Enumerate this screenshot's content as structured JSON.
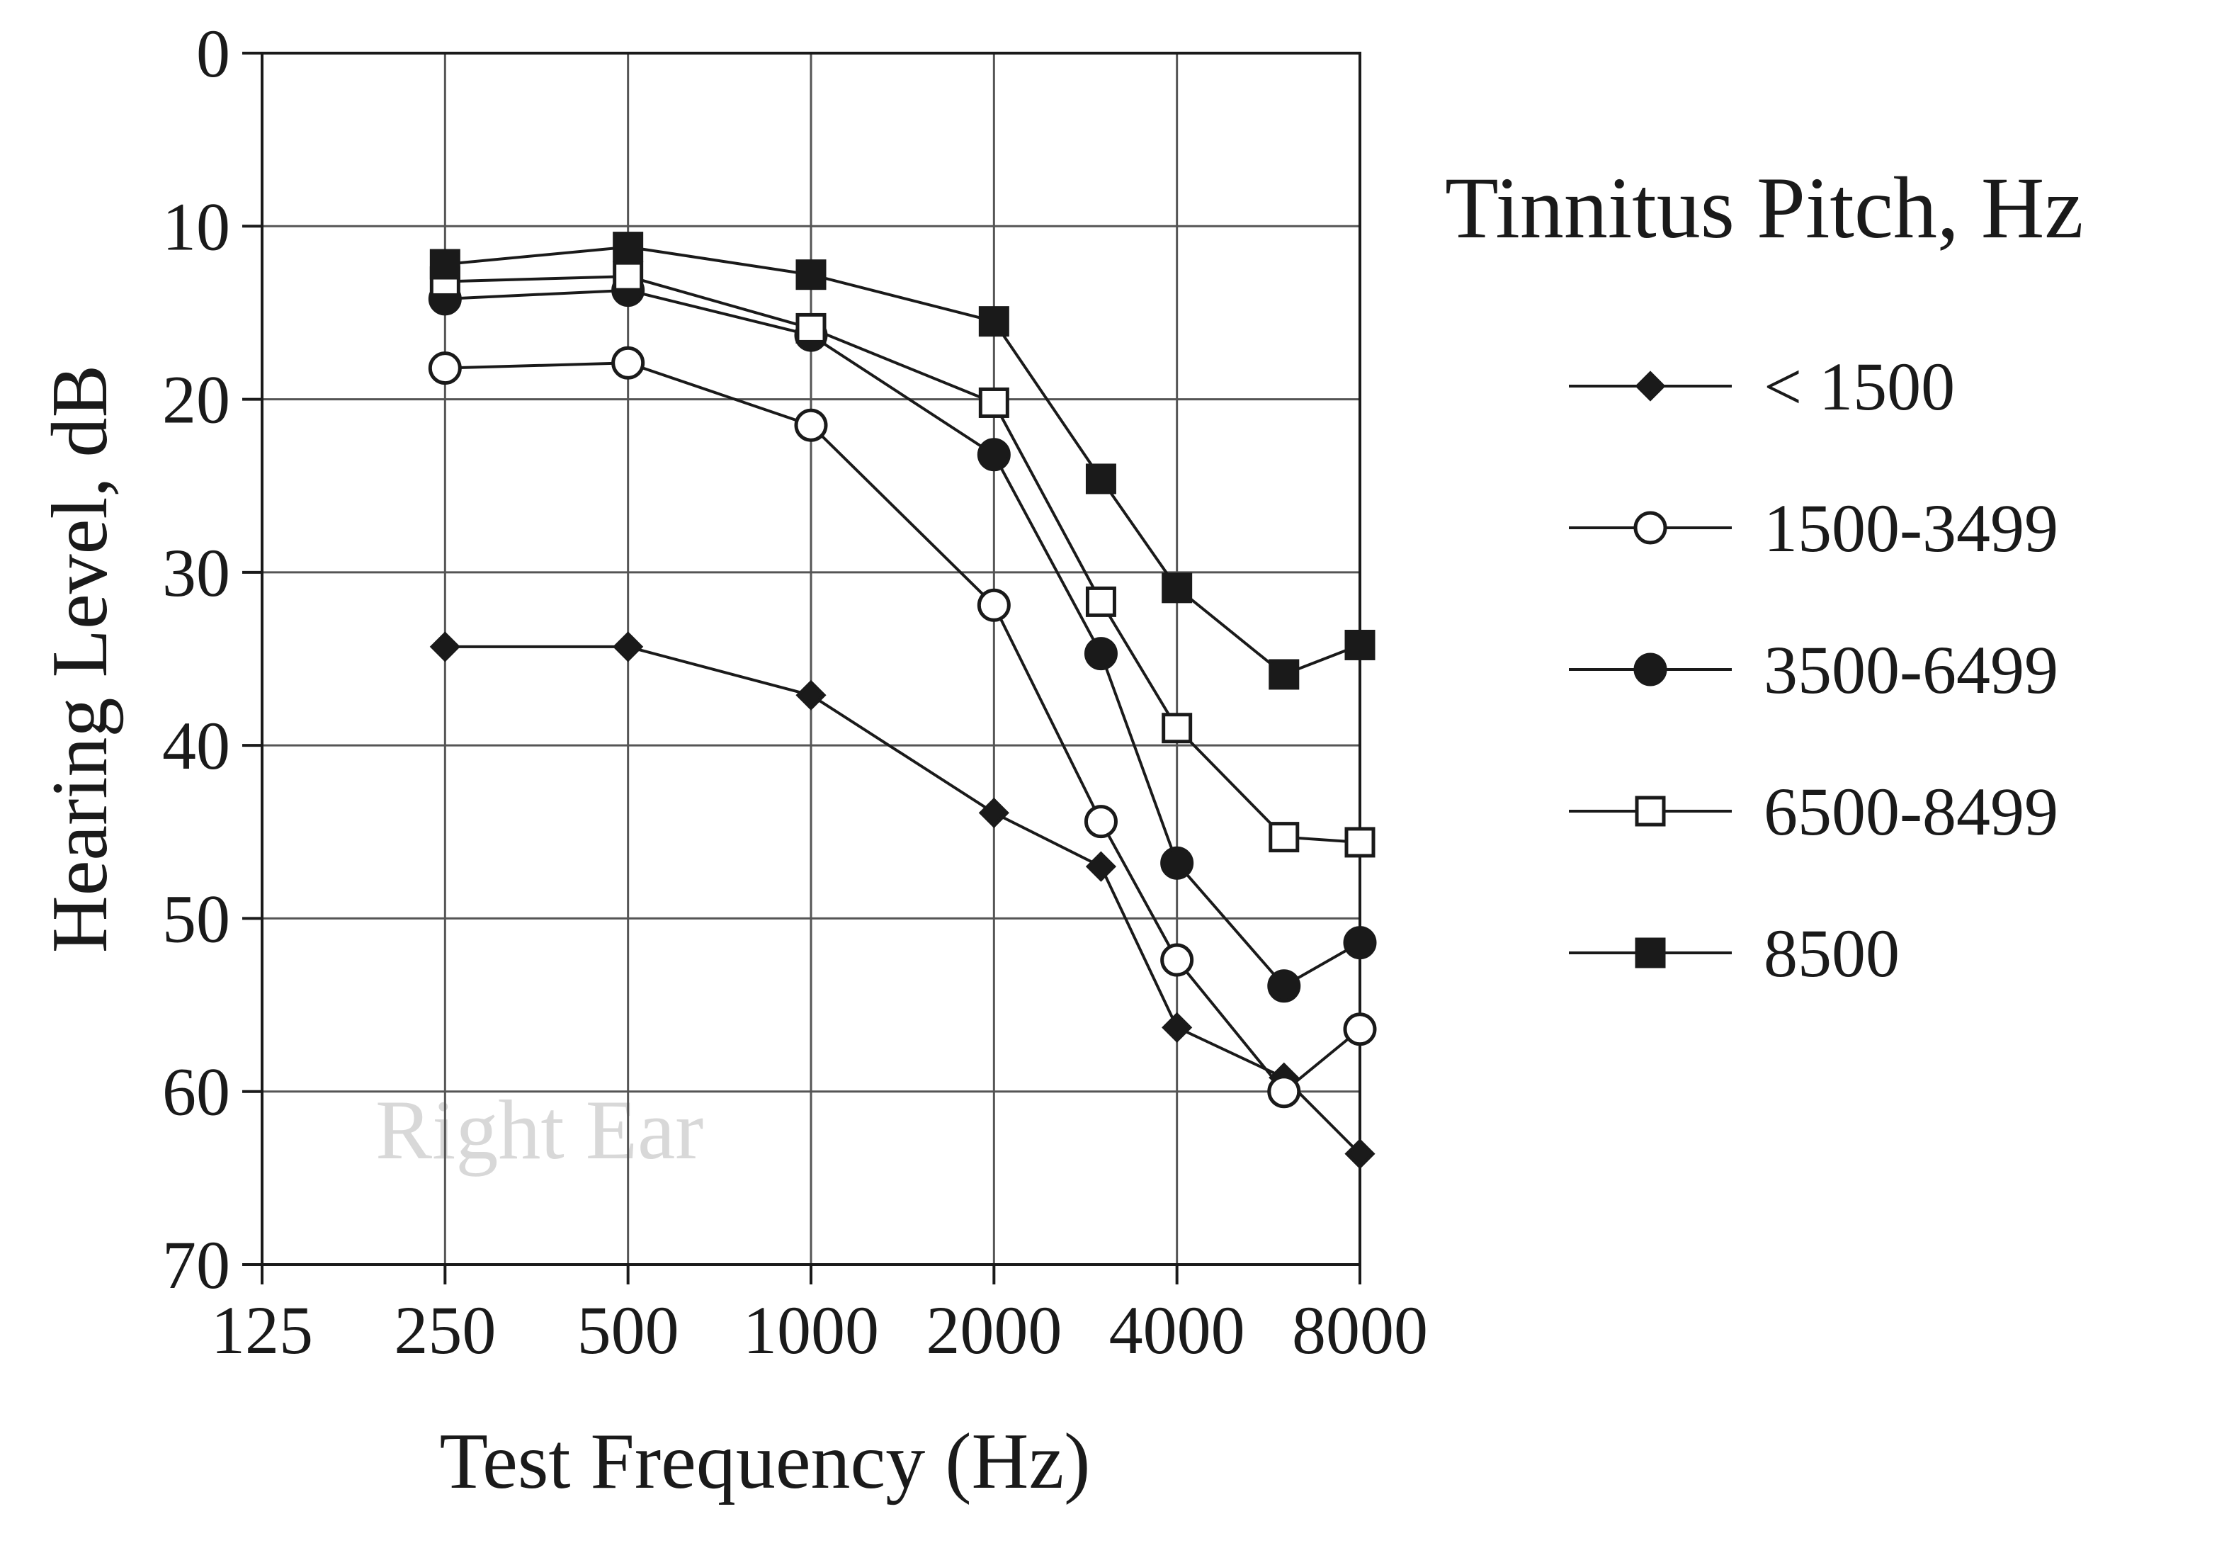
{
  "chart_data": {
    "type": "line",
    "x_scale": "log2",
    "x": [
      250,
      500,
      1000,
      2000,
      3000,
      4000,
      6000,
      8000
    ],
    "x_tick_labels": [
      "125",
      "250",
      "500",
      "1000",
      "2000",
      "4000",
      "8000"
    ],
    "x_tick_values": [
      125,
      250,
      500,
      1000,
      2000,
      4000,
      8000
    ],
    "xlim": [
      125,
      8000
    ],
    "ylim": [
      0,
      70
    ],
    "y_inverted": true,
    "y_tick_labels": [
      "0",
      "10",
      "20",
      "30",
      "40",
      "50",
      "60",
      "70"
    ],
    "y_tick_values": [
      0,
      10,
      20,
      30,
      40,
      50,
      60,
      70
    ],
    "xlabel": "Test Frequency (Hz)",
    "ylabel": "Hearing Level, dB",
    "grid": true,
    "watermark": "Right Ear",
    "legend_title": "Tinnitus Pitch, Hz",
    "legend_position": "right",
    "series": [
      {
        "name": "< 1500",
        "marker": "diamond-filled",
        "values": [
          34.3,
          34.3,
          37.1,
          43.9,
          47.0,
          56.3,
          59.2,
          63.6
        ]
      },
      {
        "name": "1500-3499",
        "marker": "circle-open",
        "values": [
          18.2,
          17.9,
          21.5,
          31.9,
          44.4,
          52.4,
          60.0,
          56.4
        ]
      },
      {
        "name": "3500-6499",
        "marker": "circle-filled",
        "values": [
          14.2,
          13.7,
          16.3,
          23.2,
          34.7,
          46.8,
          53.9,
          51.4
        ]
      },
      {
        "name": "6500-8499",
        "marker": "square-open",
        "values": [
          13.2,
          12.9,
          15.9,
          20.2,
          31.7,
          39.0,
          45.3,
          45.6
        ]
      },
      {
        "name": "8500",
        "marker": "square-filled",
        "values": [
          12.2,
          11.2,
          12.8,
          15.5,
          24.6,
          30.9,
          35.9,
          34.2
        ]
      }
    ]
  }
}
